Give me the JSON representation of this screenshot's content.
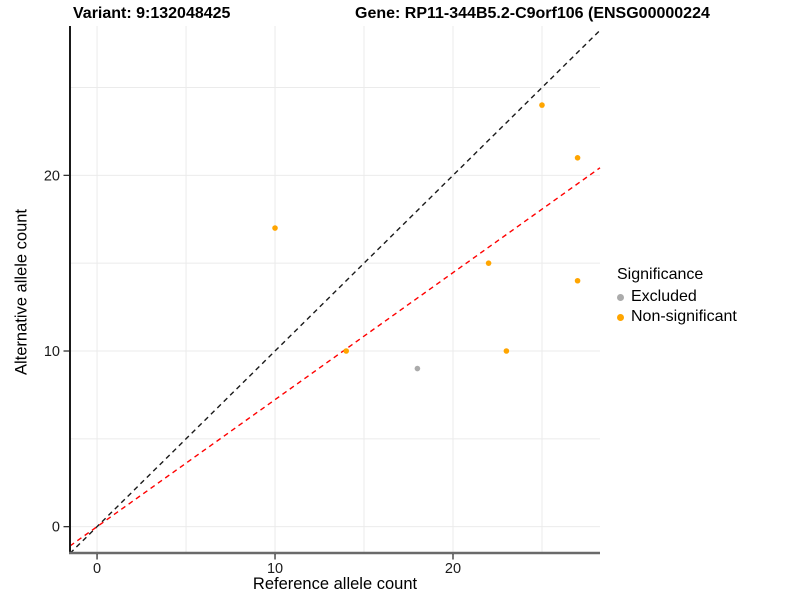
{
  "titles": {
    "variant": "Variant: 9:132048425",
    "gene": "Gene: RP11-344B5.2-C9orf106 (ENSG00000224"
  },
  "chart_data": {
    "type": "scatter",
    "xlabel": "Reference allele count",
    "ylabel": "Alternative allele count",
    "xlim": [
      -1.52,
      28.26
    ],
    "ylim": [
      -1.5,
      28.39
    ],
    "xticks": [
      0,
      10,
      20
    ],
    "yticks": [
      0,
      10,
      20
    ],
    "gridlines": [
      0,
      5,
      10,
      15,
      20,
      25
    ],
    "grid_color": "#ebebeb",
    "axis_color": "#4a4a4a",
    "tick_color": "#333333",
    "tick_label_color": "#1a1a1a",
    "series": [
      {
        "name": "Excluded",
        "color": "#ABABAB",
        "points": [
          [
            18,
            9
          ]
        ]
      },
      {
        "name": "Non-significant",
        "color": "#FFA500",
        "points": [
          [
            10,
            17
          ],
          [
            14,
            10
          ],
          [
            22,
            15
          ],
          [
            23,
            10
          ],
          [
            25,
            24
          ],
          [
            27,
            21
          ],
          [
            27,
            14
          ]
        ]
      }
    ],
    "lines": [
      {
        "name": "identity-line",
        "slope": 1,
        "intercept": 0,
        "color": "#1a1a1a",
        "dashed": true
      },
      {
        "name": "ratio-line",
        "slope": 0.723,
        "intercept": 0,
        "color": "#FF0000",
        "dashed": true
      }
    ],
    "legend": {
      "title": "Significance",
      "position": "right",
      "entries": [
        {
          "label": "Excluded",
          "color": "#ABABAB"
        },
        {
          "label": "Non-significant",
          "color": "#FFA500"
        }
      ]
    }
  }
}
